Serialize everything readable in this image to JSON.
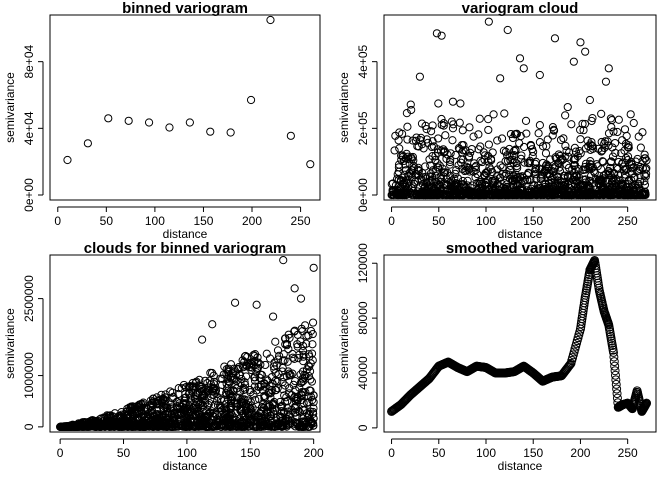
{
  "figure": {
    "description_none": ""
  },
  "chart_data": [
    {
      "id": "binned",
      "type": "scatter",
      "title": "binned variogram",
      "xlabel": "distance",
      "ylabel": "semivariance",
      "xlim": [
        -8,
        270
      ],
      "ylim": [
        -3000,
        108000
      ],
      "xticks": [
        {
          "v": 0,
          "label": "0"
        },
        {
          "v": 50,
          "label": "50"
        },
        {
          "v": 100,
          "label": "100"
        },
        {
          "v": 150,
          "label": "150"
        },
        {
          "v": 200,
          "label": "200"
        },
        {
          "v": 250,
          "label": "250"
        }
      ],
      "yticks": [
        {
          "v": 0,
          "label": "0e+00"
        },
        {
          "v": 40000,
          "label": "4e+04"
        },
        {
          "v": 80000,
          "label": "8e+04"
        }
      ],
      "x": [
        10,
        31,
        52,
        73,
        94,
        115,
        136,
        157,
        178,
        199,
        219,
        240,
        260
      ],
      "y": [
        21000,
        31000,
        46000,
        44500,
        43500,
        40500,
        43500,
        38000,
        37500,
        57000,
        105000,
        35500,
        18500
      ]
    },
    {
      "id": "cloud",
      "type": "scatter",
      "title": "variogram cloud",
      "xlabel": "distance",
      "ylabel": "semivariance",
      "xlim": [
        -8,
        280
      ],
      "ylim": [
        -15000,
        540000
      ],
      "xticks": [
        {
          "v": 0,
          "label": "0"
        },
        {
          "v": 50,
          "label": "50"
        },
        {
          "v": 100,
          "label": "100"
        },
        {
          "v": 150,
          "label": "150"
        },
        {
          "v": 200,
          "label": "200"
        },
        {
          "v": 250,
          "label": "250"
        }
      ],
      "yticks": [
        {
          "v": 0,
          "label": "0e+00"
        },
        {
          "v": 200000,
          "label": "2e+05"
        },
        {
          "v": 400000,
          "label": "4e+05"
        }
      ],
      "generator": {
        "n": 1400,
        "xmax": 270,
        "ymax": 520000,
        "seed": 7,
        "mode": "cloud"
      },
      "outliers": [
        {
          "x": 48,
          "y": 485000
        },
        {
          "x": 53,
          "y": 478000
        },
        {
          "x": 103,
          "y": 520000
        },
        {
          "x": 123,
          "y": 495000
        },
        {
          "x": 173,
          "y": 470000
        },
        {
          "x": 200,
          "y": 458000
        },
        {
          "x": 193,
          "y": 400000
        },
        {
          "x": 205,
          "y": 430000
        },
        {
          "x": 136,
          "y": 410000
        },
        {
          "x": 140,
          "y": 380000
        },
        {
          "x": 115,
          "y": 350000
        },
        {
          "x": 30,
          "y": 355000
        },
        {
          "x": 230,
          "y": 380000
        },
        {
          "x": 227,
          "y": 340000
        },
        {
          "x": 157,
          "y": 360000
        },
        {
          "x": 210,
          "y": 285000
        },
        {
          "x": 65,
          "y": 280000
        }
      ]
    },
    {
      "id": "clouds_binned",
      "type": "scatter",
      "title": "clouds for binned variogram",
      "xlabel": "distance",
      "ylabel": "semivariance",
      "xlim": [
        -8,
        205
      ],
      "ylim": [
        -100000,
        3350000
      ],
      "xticks": [
        {
          "v": 0,
          "label": "0"
        },
        {
          "v": 50,
          "label": "50"
        },
        {
          "v": 100,
          "label": "100"
        },
        {
          "v": 150,
          "label": "150"
        },
        {
          "v": 200,
          "label": "200"
        }
      ],
      "yticks": [
        {
          "v": 0,
          "label": "0"
        },
        {
          "v": 1000000,
          "label": "1000000"
        },
        {
          "v": 2500000,
          "label": "2500000"
        }
      ],
      "generator": {
        "n": 1500,
        "xmax": 200,
        "ymax": 3200000,
        "seed": 11,
        "mode": "funnel"
      },
      "outliers": [
        {
          "x": 176,
          "y": 3250000
        },
        {
          "x": 200,
          "y": 3100000
        },
        {
          "x": 138,
          "y": 2420000
        },
        {
          "x": 155,
          "y": 2380000
        },
        {
          "x": 190,
          "y": 2500000
        },
        {
          "x": 120,
          "y": 2000000
        },
        {
          "x": 112,
          "y": 1700000
        },
        {
          "x": 168,
          "y": 2150000
        },
        {
          "x": 185,
          "y": 2700000
        }
      ]
    },
    {
      "id": "smoothed",
      "type": "line",
      "title": "smoothed variogram",
      "xlabel": "distance",
      "ylabel": "semivariance",
      "xlim": [
        -8,
        280
      ],
      "ylim": [
        -3000,
        126000
      ],
      "xticks": [
        {
          "v": 0,
          "label": "0"
        },
        {
          "v": 50,
          "label": "50"
        },
        {
          "v": 100,
          "label": "100"
        },
        {
          "v": 150,
          "label": "150"
        },
        {
          "v": 200,
          "label": "200"
        },
        {
          "v": 250,
          "label": "250"
        }
      ],
      "yticks": [
        {
          "v": 0,
          "label": "0"
        },
        {
          "v": 40000,
          "label": "40000"
        },
        {
          "v": 80000,
          "label": "80000"
        },
        {
          "v": 120000,
          "label": "120000"
        }
      ],
      "x": [
        0,
        10,
        20,
        30,
        40,
        50,
        60,
        70,
        80,
        90,
        100,
        110,
        120,
        130,
        140,
        150,
        160,
        170,
        180,
        190,
        200,
        205,
        210,
        215,
        220,
        225,
        230,
        235,
        240,
        245,
        250,
        255,
        260,
        265,
        270
      ],
      "y": [
        12000,
        17000,
        24000,
        30000,
        36000,
        45000,
        48000,
        44000,
        41000,
        45000,
        44000,
        40000,
        40000,
        41000,
        45000,
        40000,
        34000,
        37000,
        38000,
        47000,
        72000,
        95000,
        115000,
        122000,
        100000,
        85000,
        75000,
        55000,
        15000,
        17000,
        18000,
        14000,
        27000,
        12000,
        18000
      ]
    }
  ]
}
